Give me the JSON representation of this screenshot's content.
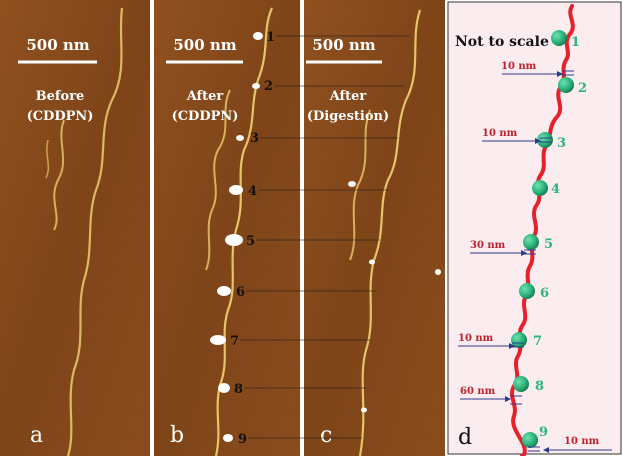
{
  "panels": [
    {
      "id": "a",
      "letter": "a",
      "scale_bar_label": "500 nm",
      "caption_line1": "Before",
      "caption_line2": "(CDDPN)"
    },
    {
      "id": "b",
      "letter": "b",
      "scale_bar_label": "500 nm",
      "caption_line1": "After",
      "caption_line2": "(CDDPN)",
      "site_numbers": [
        "1",
        "2",
        "3",
        "4",
        "5",
        "6",
        "7",
        "8",
        "9"
      ]
    },
    {
      "id": "c",
      "letter": "c",
      "scale_bar_label": "500 nm",
      "caption_line1": "After",
      "caption_line2": "(Digestion)"
    },
    {
      "id": "d",
      "letter": "d",
      "title": "Not to scale",
      "site_numbers": [
        "1",
        "2",
        "3",
        "4",
        "5",
        "6",
        "7",
        "8",
        "9"
      ],
      "spacing_labels": [
        "10 nm",
        "10 nm",
        "30 nm",
        "10 nm",
        "60 nm",
        "10 nm"
      ]
    }
  ],
  "colors": {
    "afm_background": "#8a4a1c",
    "afm_dna_strand": "#e6c46a",
    "protein_blob": "#ffffff",
    "schematic_background": "#fbecef",
    "schematic_dna": "#e8202a",
    "schematic_sphere": "#2bb47c",
    "spacing_label": "#c0212b",
    "arrow": "#2b3a8c",
    "site_number_d": "#2bb47c"
  }
}
